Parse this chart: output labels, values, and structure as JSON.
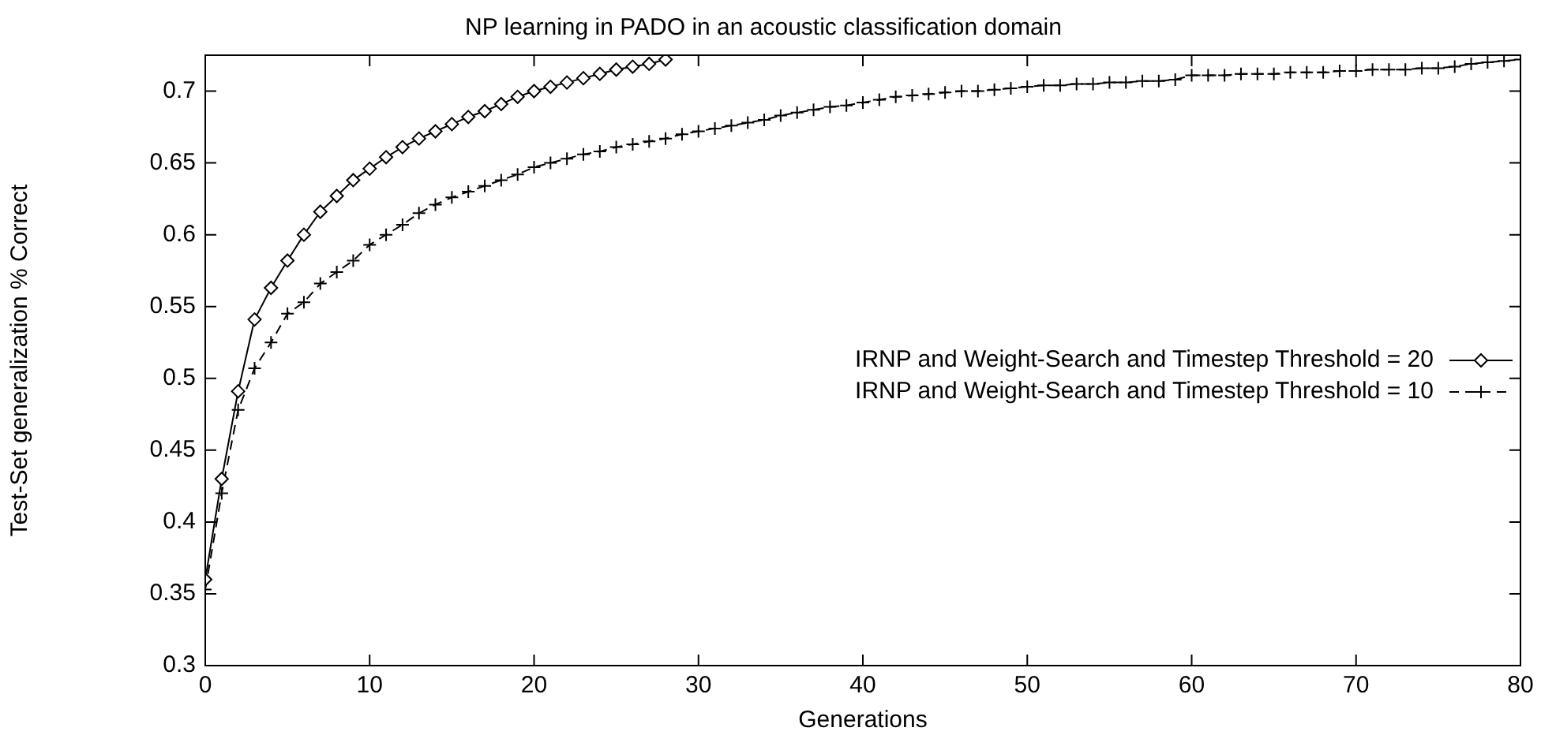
{
  "chart_data": {
    "type": "line",
    "title": "NP learning in PADO in an acoustic classification domain",
    "xlabel": "Generations",
    "ylabel": "Test-Set generalization % Correct",
    "xlim": [
      0,
      80
    ],
    "xticks": [
      0,
      10,
      20,
      30,
      40,
      50,
      60,
      70,
      80
    ],
    "ylim": [
      0.3,
      0.725
    ],
    "yticks": [
      0.3,
      0.35,
      0.4,
      0.45,
      0.5,
      0.55,
      0.6,
      0.65,
      0.7
    ],
    "grid": false,
    "legend": "right",
    "series": [
      {
        "name": "IRNP and Weight-Search and Timestep Threshold = 20",
        "color": "#000000",
        "marker": "diamond",
        "line_style": "solid",
        "x": [
          0,
          1,
          2,
          3,
          4,
          5,
          6,
          7,
          8,
          9,
          10,
          11,
          12,
          13,
          14,
          15,
          16,
          17,
          18,
          19,
          20,
          21,
          22,
          23,
          24,
          25,
          26,
          27,
          28
        ],
        "values": [
          0.36,
          0.43,
          0.491,
          0.541,
          0.563,
          0.582,
          0.6,
          0.616,
          0.627,
          0.638,
          0.646,
          0.654,
          0.661,
          0.667,
          0.672,
          0.677,
          0.682,
          0.686,
          0.691,
          0.696,
          0.7,
          0.703,
          0.706,
          0.709,
          0.712,
          0.715,
          0.717,
          0.719,
          0.722
        ]
      },
      {
        "name": "IRNP and Weight-Search and Timestep Threshold = 10",
        "color": "#000000",
        "marker": "cross",
        "line_style": "dashed",
        "x": [
          0,
          1,
          2,
          3,
          4,
          5,
          6,
          7,
          8,
          9,
          10,
          11,
          12,
          13,
          14,
          15,
          16,
          17,
          18,
          19,
          20,
          21,
          22,
          23,
          24,
          25,
          26,
          27,
          28,
          29,
          30,
          31,
          32,
          33,
          34,
          35,
          36,
          37,
          38,
          39,
          40,
          41,
          42,
          43,
          44,
          45,
          46,
          47,
          48,
          49,
          50,
          51,
          52,
          53,
          54,
          55,
          56,
          57,
          58,
          59,
          60,
          61,
          62,
          63,
          64,
          65,
          66,
          67,
          68,
          69,
          70,
          71,
          72,
          73,
          74,
          75,
          76,
          77,
          78,
          79,
          80
        ],
        "values": [
          0.353,
          0.42,
          0.478,
          0.507,
          0.525,
          0.545,
          0.553,
          0.566,
          0.574,
          0.582,
          0.593,
          0.6,
          0.607,
          0.615,
          0.621,
          0.626,
          0.63,
          0.634,
          0.638,
          0.642,
          0.647,
          0.65,
          0.653,
          0.656,
          0.658,
          0.661,
          0.663,
          0.665,
          0.667,
          0.67,
          0.672,
          0.674,
          0.676,
          0.678,
          0.68,
          0.683,
          0.685,
          0.687,
          0.689,
          0.69,
          0.692,
          0.694,
          0.696,
          0.697,
          0.698,
          0.699,
          0.7,
          0.7,
          0.701,
          0.702,
          0.703,
          0.704,
          0.704,
          0.705,
          0.705,
          0.706,
          0.706,
          0.707,
          0.707,
          0.708,
          0.711,
          0.711,
          0.711,
          0.712,
          0.712,
          0.712,
          0.713,
          0.713,
          0.713,
          0.714,
          0.714,
          0.715,
          0.715,
          0.715,
          0.716,
          0.716,
          0.717,
          0.719,
          0.72,
          0.721,
          0.722
        ]
      }
    ]
  }
}
